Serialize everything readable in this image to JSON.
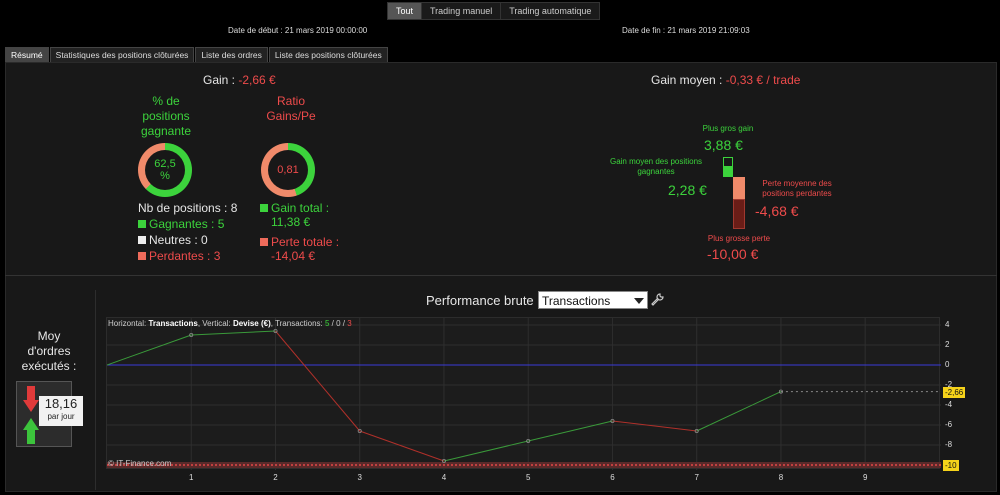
{
  "filters": [
    {
      "label": "Tout",
      "active": true
    },
    {
      "label": "Trading manuel",
      "active": false
    },
    {
      "label": "Trading automatique",
      "active": false
    }
  ],
  "dates": {
    "start": "Date de début : 21 mars 2019 00:00:00",
    "end": "Date de fin : 21 mars 2019 21:09:03"
  },
  "tabs": [
    "Résumé",
    "Statistiques des positions clôturées",
    "Liste des ordres",
    "Liste des positions clôturées"
  ],
  "summary": {
    "gain_label": "Gain : ",
    "gain_value": "-2,66 €",
    "avg_gain_label": "Gain moyen : ",
    "avg_gain_value": "-0,33 € / trade",
    "win_ratio_label_lines": [
      "% de",
      "positions",
      "gagnante"
    ],
    "win_ratio_value_lines": [
      "62,5",
      "%"
    ],
    "win_ratio_fraction": 0.625,
    "gain_ratio_label_lines": [
      "Ratio",
      "Gains/Pe"
    ],
    "gain_ratio_value": "0,81",
    "gain_ratio_fraction": 0.448,
    "nb_positions": "Nb de positions : 8",
    "gagnantes": "Gagnantes : 5",
    "neutres": "Neutres : 0",
    "perdantes": "Perdantes : 3",
    "gain_total_lines": [
      "Gain total :",
      "11,38 €"
    ],
    "perte_totale_lines": [
      "Perte totale :",
      "-14,04 €"
    ],
    "plus_gros_gain_label": "Plus gros gain",
    "plus_gros_gain_value": "3,88 €",
    "gain_moyen_pos_label_lines": [
      "Gain moyen des positions",
      "gagnantes"
    ],
    "gain_moyen_pos_value": "2,28 €",
    "perte_moyenne_label_lines": [
      "Perte moyenne des",
      "positions perdantes"
    ],
    "perte_moyenne_value": "-4,68 €",
    "plus_grosse_perte_label": "Plus grosse perte",
    "plus_grosse_perte_value": "-10,00 €"
  },
  "orders": {
    "title_lines": [
      "Moy",
      "d'ordres",
      "exécutés :"
    ],
    "value": "18,16",
    "unit": "par jour"
  },
  "performance": {
    "title": "Performance brute",
    "select_value": "Transactions",
    "info_h_label": "Horizontal: ",
    "info_h_value": "Transactions",
    "info_v_label": ", Vertical: ",
    "info_v_value": "Devise (€)",
    "info_t_label": ", Transactions: ",
    "info_t_win": "5",
    "info_sep1": " / ",
    "info_t_neutral": "0",
    "info_sep2": " / ",
    "info_t_loss": "3",
    "copyright": "© IT-Finance.com",
    "current_value_badge": "-2,66",
    "min_value_badge": "-10"
  },
  "colors": {
    "green": "#3cd33c",
    "red": "#ee4b4b",
    "badge": "#f5d21a",
    "zero_line": "#3a3ad8"
  },
  "chart_data": {
    "type": "line",
    "x": [
      0,
      1,
      2,
      3,
      4,
      5,
      6,
      7,
      8
    ],
    "y": [
      0,
      3.0,
      3.4,
      -6.6,
      -9.6,
      -7.6,
      -5.6,
      -6.6,
      -2.66
    ],
    "segment_colors": [
      "green",
      "green",
      "red",
      "red",
      "green",
      "green",
      "red",
      "green"
    ],
    "xticks": [
      1,
      2,
      3,
      4,
      5,
      6,
      7,
      8,
      9
    ],
    "yticks": [
      4,
      2,
      0,
      -2,
      -4,
      -6,
      -8
    ],
    "xlim": [
      0,
      9.9
    ],
    "ylim": [
      -10,
      4
    ],
    "current_value": -2.66,
    "min_line": -10
  }
}
